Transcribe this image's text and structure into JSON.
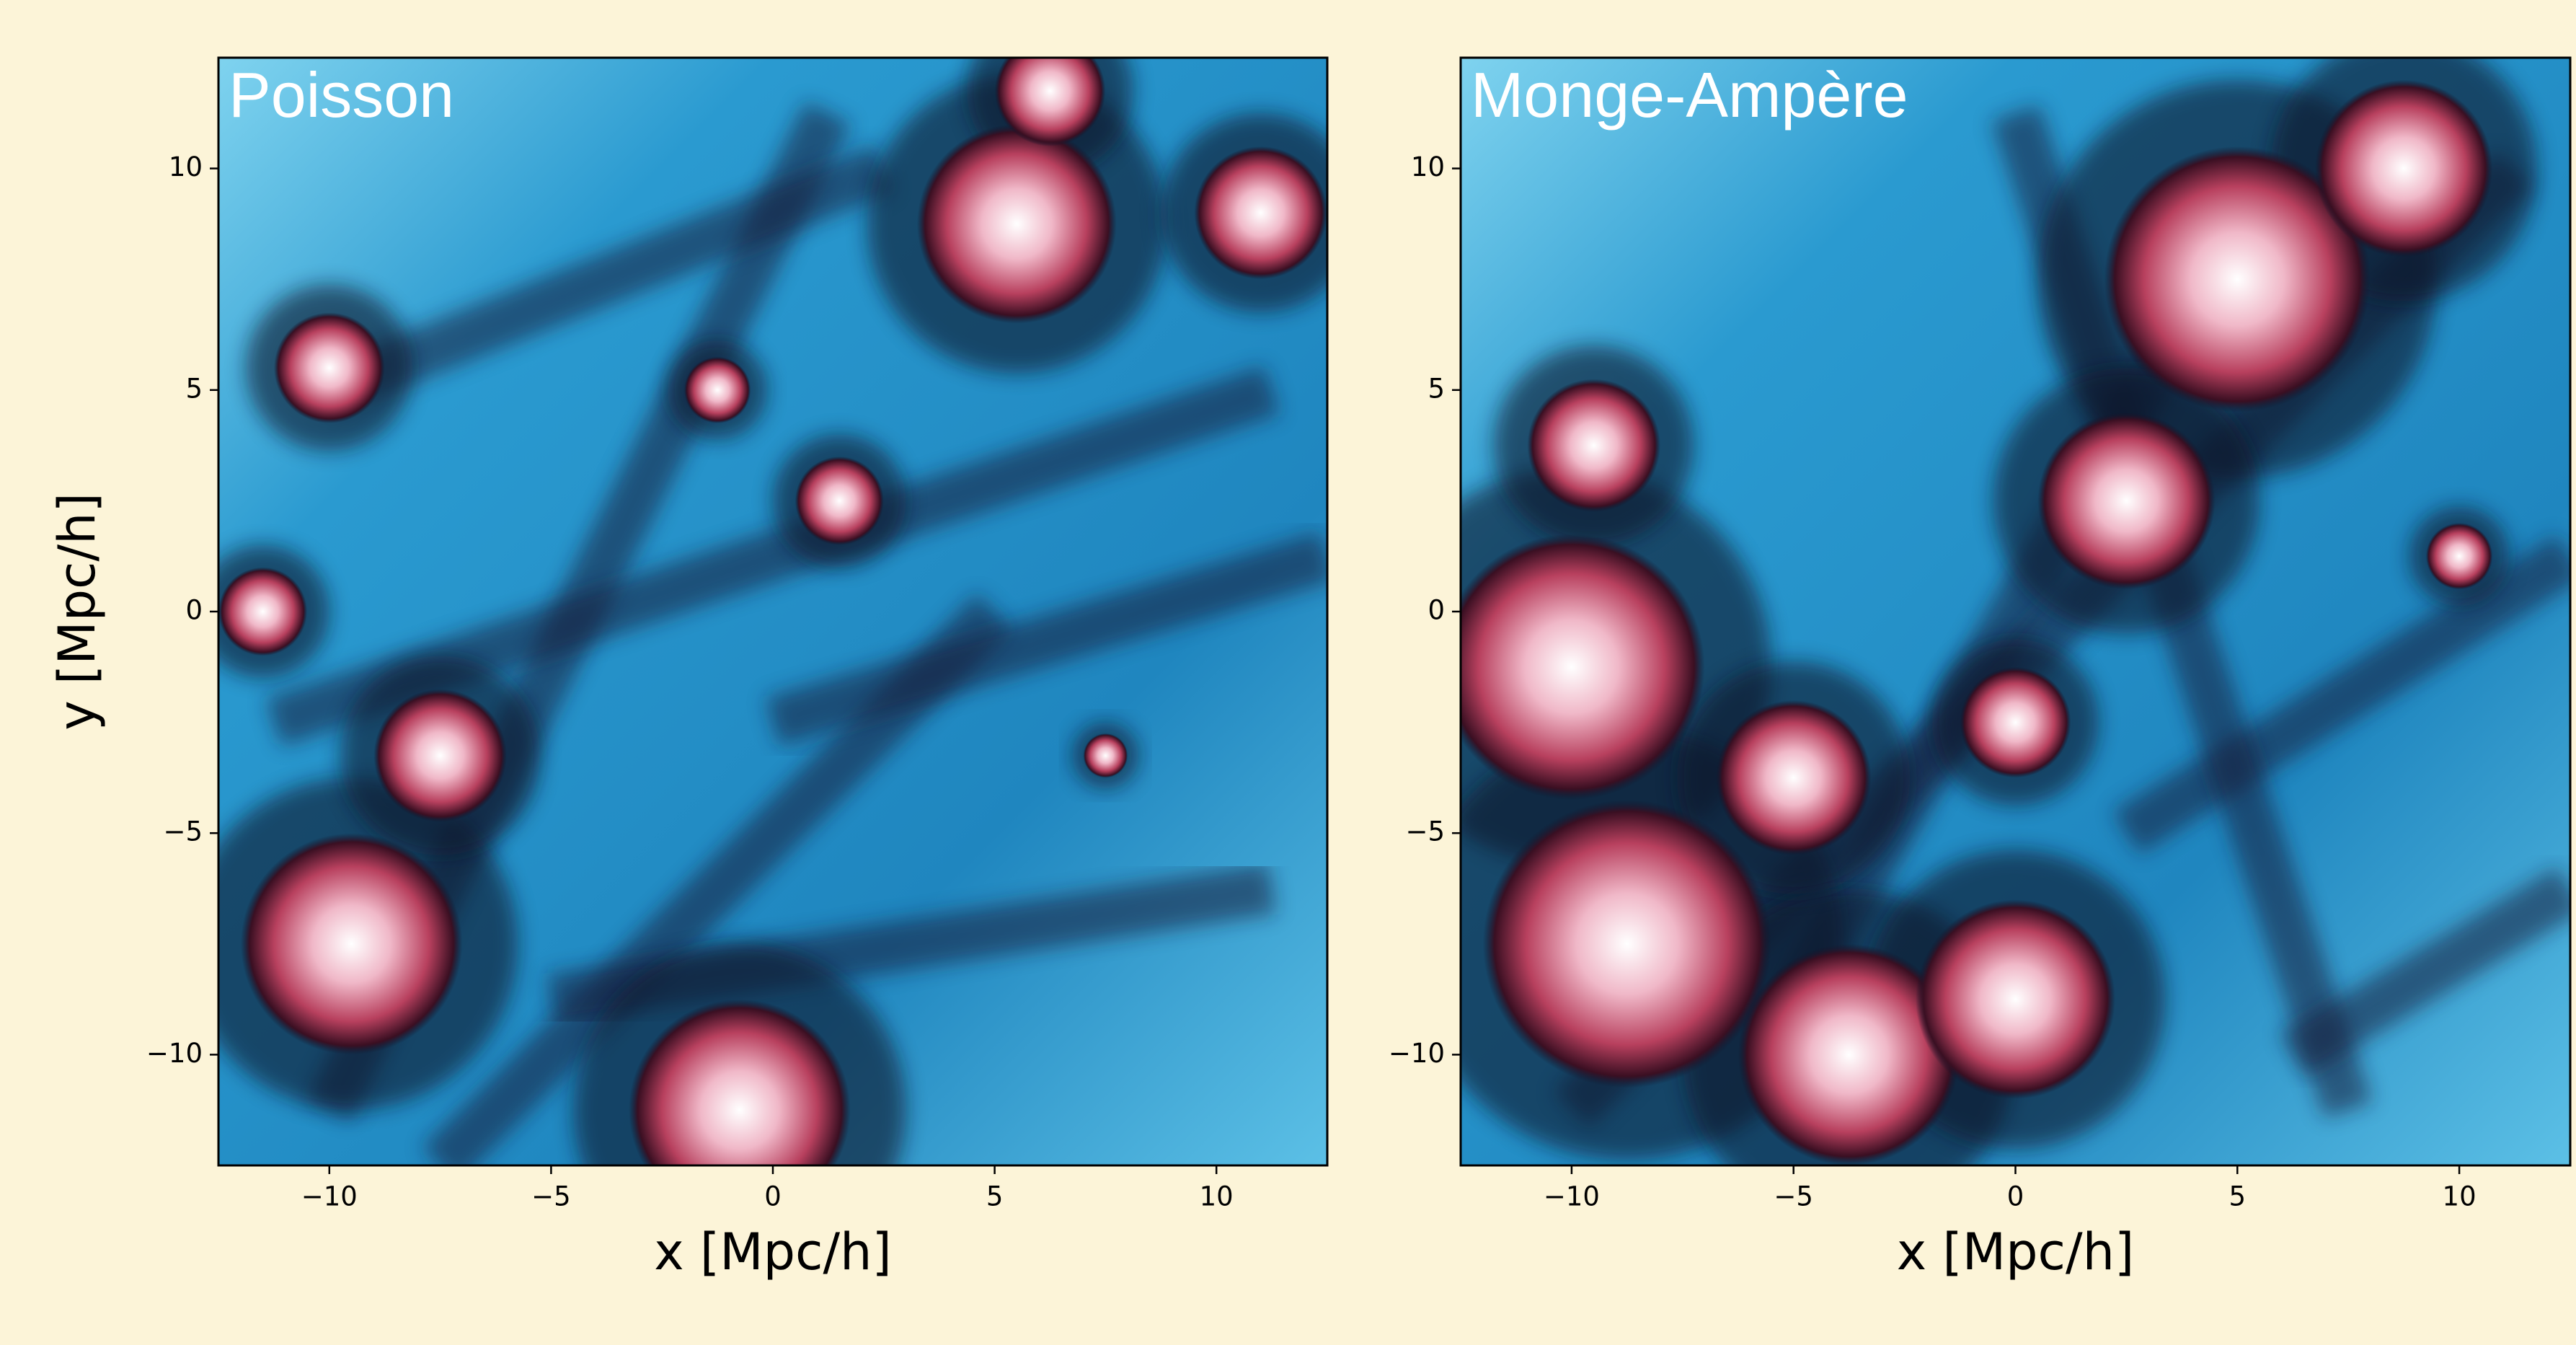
{
  "chart_data": [
    {
      "type": "image",
      "title": "Poisson",
      "xlabel": "x [Mpc/h]",
      "ylabel": "y [Mpc/h]",
      "xlim": [
        -12.5,
        12.5
      ],
      "ylim": [
        -12.5,
        12.5
      ],
      "xticks": [
        {
          "value": -10,
          "label": "−10"
        },
        {
          "value": -5,
          "label": "−5"
        },
        0,
        5,
        10
      ],
      "yticks": [
        {
          "value": -10,
          "label": "−10"
        },
        {
          "value": -5,
          "label": "−5"
        },
        0,
        5,
        10
      ]
    },
    {
      "type": "image",
      "title": "Monge-Ampère",
      "xlabel": "x [Mpc/h]",
      "xlim": [
        -12.5,
        12.5
      ],
      "ylim": [
        -12.5,
        12.5
      ],
      "xticks": [
        {
          "value": -10,
          "label": "−10"
        },
        {
          "value": -5,
          "label": "−5"
        },
        0,
        5,
        10
      ],
      "yticks": [
        {
          "value": -10,
          "label": "−10"
        },
        {
          "value": -5,
          "label": "−5"
        },
        0,
        5,
        10
      ]
    }
  ]
}
